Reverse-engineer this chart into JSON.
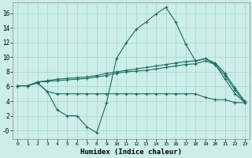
{
  "xlabel": "Humidex (Indice chaleur)",
  "background_color": "#cceee8",
  "grid_color": "#aad8d0",
  "line_color": "#1a6b60",
  "xlim": [
    -0.5,
    23.5
  ],
  "ylim": [
    -1.2,
    17.5
  ],
  "xticks": [
    0,
    1,
    2,
    3,
    4,
    5,
    6,
    7,
    8,
    9,
    10,
    11,
    12,
    13,
    14,
    15,
    16,
    17,
    18,
    19,
    20,
    21,
    22,
    23
  ],
  "yticks": [
    0,
    2,
    4,
    6,
    8,
    10,
    12,
    14,
    16
  ],
  "ytick_labels": [
    "-0",
    "2",
    "4",
    "6",
    "8",
    "10",
    "12",
    "14",
    "16"
  ],
  "line1_x": [
    0,
    1,
    2,
    3,
    4,
    5,
    6,
    7,
    8,
    9,
    10,
    11,
    12,
    13,
    14,
    15,
    16,
    17,
    18,
    19,
    20,
    21,
    22,
    23
  ],
  "line1_y": [
    6.1,
    6.1,
    6.5,
    5.3,
    5.0,
    5.0,
    5.0,
    5.0,
    5.0,
    5.0,
    5.0,
    5.0,
    5.0,
    5.0,
    5.0,
    5.0,
    5.0,
    5.0,
    5.0,
    4.5,
    4.2,
    4.2,
    3.8,
    3.8
  ],
  "line2_x": [
    0,
    1,
    2,
    3,
    4,
    5,
    6,
    7,
    8,
    9,
    10,
    11,
    12,
    13,
    14,
    15,
    16,
    17,
    18,
    19,
    20,
    21,
    22,
    23
  ],
  "line2_y": [
    6.1,
    6.1,
    6.6,
    6.7,
    6.8,
    6.9,
    7.0,
    7.1,
    7.3,
    7.5,
    7.8,
    8.0,
    8.1,
    8.2,
    8.4,
    8.6,
    8.8,
    9.0,
    9.1,
    9.5,
    9.0,
    7.5,
    5.5,
    3.8
  ],
  "line3_x": [
    0,
    1,
    2,
    3,
    4,
    5,
    6,
    7,
    8,
    9,
    10,
    11,
    12,
    13,
    14,
    15,
    16,
    17,
    18,
    19,
    20,
    21,
    22,
    23
  ],
  "line3_y": [
    6.1,
    6.1,
    6.6,
    6.8,
    7.0,
    7.1,
    7.2,
    7.3,
    7.5,
    7.8,
    8.0,
    8.2,
    8.4,
    8.6,
    8.8,
    9.0,
    9.2,
    9.4,
    9.5,
    9.8,
    9.2,
    7.8,
    5.8,
    4.0
  ],
  "line4_x": [
    0,
    1,
    2,
    3,
    4,
    5,
    6,
    7,
    8,
    9,
    10,
    11,
    12,
    13,
    14,
    15,
    16,
    17,
    18,
    19,
    20,
    21,
    22,
    23
  ],
  "line4_y": [
    6.1,
    6.1,
    6.5,
    5.3,
    2.8,
    2.0,
    2.0,
    0.5,
    -0.3,
    3.8,
    9.8,
    12.0,
    13.8,
    14.8,
    15.9,
    16.8,
    14.8,
    11.8,
    9.5,
    9.8,
    9.0,
    7.0,
    5.0,
    3.8
  ]
}
